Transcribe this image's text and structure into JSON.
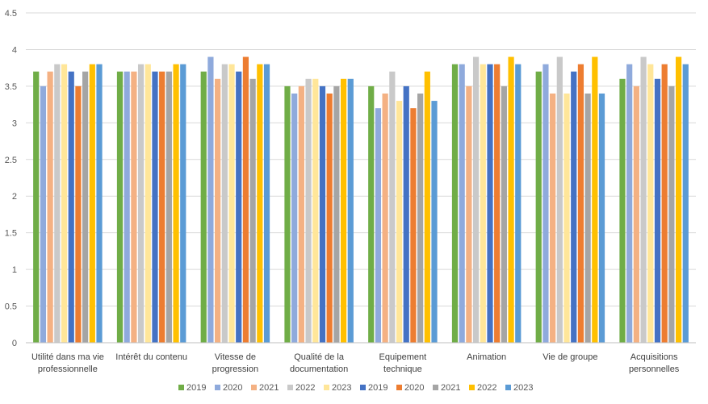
{
  "chart_data": {
    "type": "bar",
    "title": "",
    "xlabel": "",
    "ylabel": "",
    "ylim": [
      0,
      4.5
    ],
    "yticks": [
      0,
      0.5,
      1,
      1.5,
      2,
      2.5,
      3,
      3.5,
      4,
      4.5
    ],
    "ytick_labels": [
      "0",
      "0.5",
      "1",
      "1.5",
      "2",
      "2.5",
      "3",
      "3.5",
      "4",
      "4.5"
    ],
    "grid": true,
    "legend_position": "bottom",
    "categories": [
      [
        "Utilité dans ma vie",
        "professionnelle"
      ],
      [
        "Intérêt du contenu"
      ],
      [
        "Vitesse de",
        "progression"
      ],
      [
        "Qualité de la",
        "documentation"
      ],
      [
        "Equipement",
        "technique"
      ],
      [
        "Animation"
      ],
      [
        "Vie de groupe"
      ],
      [
        "Acquisitions",
        "personnelles"
      ]
    ],
    "series": [
      {
        "name": "2019",
        "color": "#70AD47",
        "values": [
          3.7,
          3.7,
          3.7,
          3.5,
          3.5,
          3.8,
          3.7,
          3.6
        ]
      },
      {
        "name": "2020",
        "color": "#8FAADC",
        "values": [
          3.5,
          3.7,
          3.9,
          3.4,
          3.2,
          3.8,
          3.8,
          3.8
        ]
      },
      {
        "name": "2021",
        "color": "#F4B183",
        "values": [
          3.7,
          3.7,
          3.6,
          3.5,
          3.4,
          3.5,
          3.4,
          3.5
        ]
      },
      {
        "name": "2022",
        "color": "#C9C9C9",
        "values": [
          3.8,
          3.8,
          3.8,
          3.6,
          3.7,
          3.9,
          3.9,
          3.9
        ]
      },
      {
        "name": "2023",
        "color": "#FFE699",
        "values": [
          3.8,
          3.8,
          3.8,
          3.6,
          3.3,
          3.8,
          3.4,
          3.8
        ]
      },
      {
        "name": "2019",
        "color": "#4472C4",
        "values": [
          3.7,
          3.7,
          3.7,
          3.5,
          3.5,
          3.8,
          3.7,
          3.6
        ]
      },
      {
        "name": "2020",
        "color": "#ED7D31",
        "values": [
          3.5,
          3.7,
          3.9,
          3.4,
          3.2,
          3.8,
          3.8,
          3.8
        ]
      },
      {
        "name": "2021",
        "color": "#A5A5A5",
        "values": [
          3.7,
          3.7,
          3.6,
          3.5,
          3.4,
          3.5,
          3.4,
          3.5
        ]
      },
      {
        "name": "2022",
        "color": "#FFC000",
        "values": [
          3.8,
          3.8,
          3.8,
          3.6,
          3.7,
          3.9,
          3.9,
          3.9
        ]
      },
      {
        "name": "2023",
        "color": "#5B9BD5",
        "values": [
          3.8,
          3.8,
          3.8,
          3.6,
          3.3,
          3.8,
          3.4,
          3.8
        ]
      }
    ],
    "gridline_color": "#D9D9D9",
    "axis_color": "#BFBFBF"
  }
}
